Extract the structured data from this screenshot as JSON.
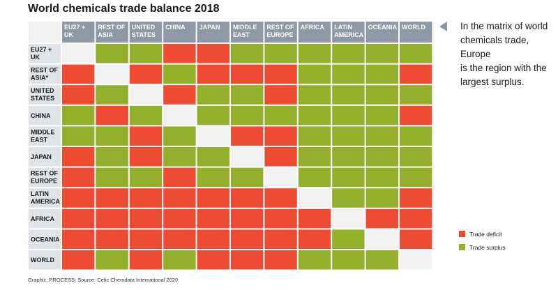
{
  "chart_data": {
    "type": "heatmap",
    "title": "World chemicals trade balance 2018",
    "columns": [
      "EU27 + UK",
      "REST OF ASIA",
      "UNITED STATES",
      "CHINA",
      "JAPAN",
      "MIDDLE EAST",
      "REST OF EUROPE",
      "AFRICA",
      "LATIN AMERICA",
      "OCEANIA",
      "WORLD"
    ],
    "rows": [
      "EU27 + UK",
      "REST OF ASIA*",
      "UNITED STATES",
      "CHINA",
      "MIDDLE EAST",
      "JAPAN",
      "REST OF EUROPE",
      "LATIN AMERICA",
      "AFRICA",
      "OCEANIA",
      "WORLD"
    ],
    "values": [
      [
        "none",
        "surplus",
        "surplus",
        "deficit",
        "deficit",
        "surplus",
        "surplus",
        "surplus",
        "surplus",
        "surplus",
        "surplus"
      ],
      [
        "deficit",
        "none",
        "deficit",
        "surplus",
        "deficit",
        "deficit",
        "deficit",
        "surplus",
        "surplus",
        "surplus",
        "deficit"
      ],
      [
        "deficit",
        "surplus",
        "none",
        "deficit",
        "surplus",
        "surplus",
        "deficit",
        "surplus",
        "surplus",
        "surplus",
        "surplus"
      ],
      [
        "surplus",
        "deficit",
        "surplus",
        "none",
        "surplus",
        "surplus",
        "surplus",
        "surplus",
        "surplus",
        "surplus",
        "deficit"
      ],
      [
        "surplus",
        "surplus",
        "deficit",
        "surplus",
        "none",
        "deficit",
        "deficit",
        "surplus",
        "surplus",
        "surplus",
        "surplus"
      ],
      [
        "deficit",
        "surplus",
        "deficit",
        "surplus",
        "surplus",
        "none",
        "deficit",
        "surplus",
        "surplus",
        "surplus",
        "surplus"
      ],
      [
        "deficit",
        "surplus",
        "surplus",
        "deficit",
        "surplus",
        "surplus",
        "none",
        "surplus",
        "surplus",
        "surplus",
        "surplus"
      ],
      [
        "deficit",
        "deficit",
        "deficit",
        "deficit",
        "deficit",
        "deficit",
        "deficit",
        "none",
        "surplus",
        "surplus",
        "deficit"
      ],
      [
        "deficit",
        "deficit",
        "deficit",
        "deficit",
        "deficit",
        "deficit",
        "deficit",
        "deficit",
        "none",
        "deficit",
        "deficit"
      ],
      [
        "deficit",
        "deficit",
        "deficit",
        "deficit",
        "deficit",
        "deficit",
        "deficit",
        "deficit",
        "surplus",
        "none",
        "deficit"
      ],
      [
        "deficit",
        "surplus",
        "deficit",
        "surplus",
        "deficit",
        "deficit",
        "deficit",
        "surplus",
        "surplus",
        "surplus",
        "none"
      ]
    ],
    "legend": [
      {
        "key": "deficit",
        "label": "Trade deficit",
        "color": "#ee4b33"
      },
      {
        "key": "surplus",
        "label": "Trade surplus",
        "color": "#94af2c"
      }
    ],
    "legend_position": "bottom-right"
  },
  "colors": {
    "header_bg": "#8e99a8",
    "row_label_bg": "#e0e3e8",
    "corner_bg": "#f1f2f4",
    "empty_cell": "#f2f2f2",
    "grid_line": "#ffffff",
    "deficit": "#ee4b33",
    "surplus": "#94af2c",
    "arrow": "#8a96a6"
  },
  "annotation": "In the matrix of world\nchemicals trade, Europe\nis the region with the\nlargest surplus.",
  "source": "Graphic: PROCESS; Source: Cefic Chemdata International 2020"
}
